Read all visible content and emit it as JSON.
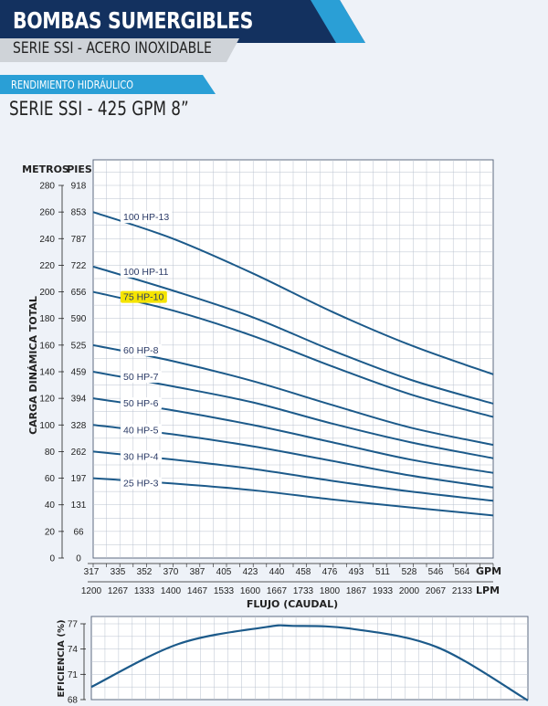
{
  "header": {
    "title": "BOMBAS SUMERGIBLES",
    "subtitle": "SERIE SSI - ACERO INOXIDABLE",
    "section": "RENDIMIENTO HIDRÁULICO",
    "series_title": "SERIE SSI - 425 GPM 8”"
  },
  "colors": {
    "navy": "#13315f",
    "blue": "#2a9fd6",
    "gray": "#cfd3d8",
    "curve": "#1c5a8a",
    "highlight": "#f5e400",
    "grid": "#b9c2cf"
  },
  "chart_data": [
    {
      "type": "line",
      "ylabel": "CARGA DINÁMICA TOTAL",
      "y_units_left": "METROS",
      "y_units_right": "PIES",
      "y_ticks_metros": [
        "0",
        "20",
        "40",
        "60",
        "80",
        "100",
        "120",
        "140",
        "160",
        "180",
        "200",
        "220",
        "240",
        "260",
        "280"
      ],
      "y_ticks_pies": [
        "0",
        "66",
        "131",
        "197",
        "262",
        "328",
        "394",
        "459",
        "525",
        "590",
        "656",
        "722",
        "787",
        "853",
        "918"
      ],
      "ylim": [
        0,
        280
      ],
      "xlabel": "FLUJO (CAUDAL)",
      "x_unit_top": "GPM",
      "x_unit_bottom": "LPM",
      "x_ticks_gpm": [
        "317",
        "335",
        "352",
        "370",
        "387",
        "405",
        "423",
        "440",
        "458",
        "476",
        "493",
        "511",
        "528",
        "546",
        "564"
      ],
      "x_ticks_lpm": [
        "1200",
        "1267",
        "1333",
        "1400",
        "1467",
        "1533",
        "1600",
        "1667",
        "1733",
        "1800",
        "1867",
        "1933",
        "2000",
        "2067",
        "2133"
      ],
      "x": [
        317,
        370,
        423,
        476,
        528,
        583
      ],
      "series": [
        {
          "name": "100 HP-13",
          "values": [
            260,
            240,
            214,
            185,
            160,
            138
          ],
          "highlight": false
        },
        {
          "name": "100 HP-11",
          "values": [
            219,
            201,
            181,
            156,
            134,
            116
          ],
          "highlight": false
        },
        {
          "name": "75 HP-10",
          "values": [
            200,
            186,
            167,
            144,
            123,
            106
          ],
          "highlight": true
        },
        {
          "name": "60 HP-8",
          "values": [
            160,
            148,
            133,
            115,
            98,
            85
          ],
          "highlight": false
        },
        {
          "name": "50 HP-7",
          "values": [
            140,
            129,
            117,
            101,
            87,
            75
          ],
          "highlight": false
        },
        {
          "name": "50 HP-6",
          "values": [
            120,
            111,
            100,
            87,
            74,
            64
          ],
          "highlight": false
        },
        {
          "name": "40 HP-5",
          "values": [
            100,
            93,
            84,
            73,
            62,
            53
          ],
          "highlight": false
        },
        {
          "name": "30 HP-4",
          "values": [
            80,
            74,
            67,
            58,
            50,
            43
          ],
          "highlight": false
        },
        {
          "name": "25 HP-3",
          "values": [
            60,
            56,
            51,
            44,
            38,
            32
          ],
          "highlight": false
        }
      ]
    },
    {
      "type": "line",
      "ylabel": "EFICIENCIA (%)",
      "y_ticks": [
        "68",
        "71",
        "74",
        "77"
      ],
      "ylim": [
        68,
        77
      ],
      "x": [
        317,
        370,
        423,
        440,
        476,
        528,
        583
      ],
      "series": [
        {
          "values": [
            69.5,
            74.6,
            76.6,
            76.75,
            76.4,
            74.2,
            67.9
          ]
        }
      ]
    }
  ]
}
